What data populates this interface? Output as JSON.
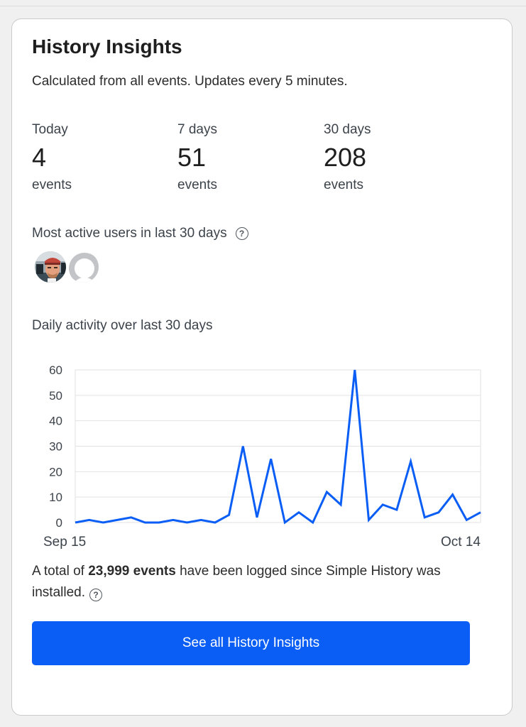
{
  "card": {
    "title": "History Insights",
    "subtitle": "Calculated from all events. Updates every 5 minutes."
  },
  "stats": [
    {
      "period": "Today",
      "count": "4",
      "unit": "events"
    },
    {
      "period": "7 days",
      "count": "51",
      "unit": "events"
    },
    {
      "period": "30 days",
      "count": "208",
      "unit": "events"
    }
  ],
  "active_users": {
    "label": "Most active users in last 30 days",
    "help_icon": "question-circle-icon",
    "avatars": [
      {
        "kind": "photo",
        "name": "user-avatar-photo"
      },
      {
        "kind": "placeholder",
        "name": "user-avatar-placeholder"
      }
    ]
  },
  "activity": {
    "label": "Daily activity over last 30 days"
  },
  "chart_data": {
    "type": "line",
    "x_start_label": "Sep 15",
    "x_end_label": "Oct 14",
    "y_ticks": [
      "0",
      "10",
      "20",
      "30",
      "40",
      "50",
      "60"
    ],
    "ylim": [
      0,
      60
    ],
    "values": [
      0,
      1,
      0,
      1,
      2,
      0,
      0,
      1,
      0,
      1,
      0,
      3,
      30,
      2,
      25,
      0,
      4,
      0,
      12,
      7,
      60,
      1,
      7,
      5,
      24,
      2,
      4,
      11,
      1,
      4
    ],
    "line_color": "#0a5ef5",
    "grid": true
  },
  "total": {
    "prefix": "A total of ",
    "count": "23,999 events",
    "suffix": " have been logged since Simple History was installed."
  },
  "cta": {
    "label": "See all History Insights",
    "color": "#0a5ef5"
  }
}
